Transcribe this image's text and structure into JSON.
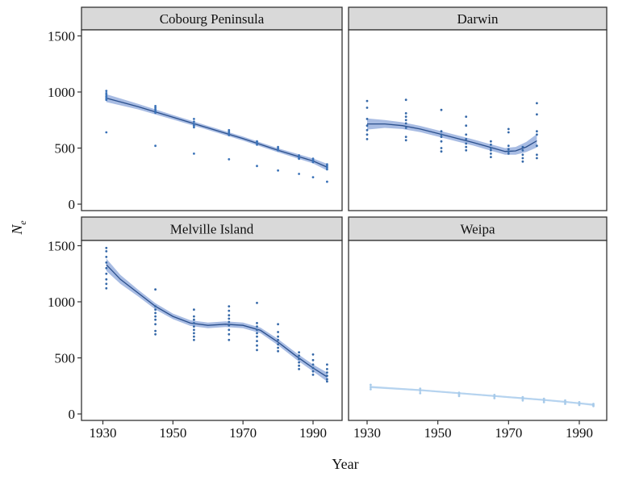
{
  "chart_data": {
    "type": "scatter",
    "facet_layout": "2x2 grid with shared axes",
    "xlabel": "Year",
    "ylabel": "N",
    "ylabel_subscript": "e",
    "xlim": [
      1925,
      1996
    ],
    "ylim": [
      -60,
      1560
    ],
    "x_ticks": [
      1930,
      1950,
      1970,
      1990
    ],
    "x_tick_labels": [
      "1930",
      "1950",
      "1970",
      "1990"
    ],
    "y_ticks": [
      0,
      500,
      1000,
      1500
    ],
    "y_tick_labels": [
      "0",
      "500",
      "1000",
      "1500"
    ],
    "grid": false,
    "colors": {
      "point": "#3568a8",
      "band": "#8ba6d9",
      "band_light": "#bcd4ee",
      "line_light": "#b5d3ef",
      "strip_bg": "#d9d9d9",
      "panel_border": "#333333"
    },
    "panels": [
      {
        "title": "Cobourg Peninsula",
        "color": "#3a72b8",
        "points": [
          [
            1931,
            1010
          ],
          [
            1931,
            990
          ],
          [
            1931,
            975
          ],
          [
            1931,
            960
          ],
          [
            1931,
            945
          ],
          [
            1931,
            930
          ],
          [
            1931,
            640
          ],
          [
            1945,
            875
          ],
          [
            1945,
            860
          ],
          [
            1945,
            845
          ],
          [
            1945,
            830
          ],
          [
            1945,
            815
          ],
          [
            1945,
            520
          ],
          [
            1956,
            760
          ],
          [
            1956,
            735
          ],
          [
            1956,
            715
          ],
          [
            1956,
            700
          ],
          [
            1956,
            685
          ],
          [
            1956,
            450
          ],
          [
            1966,
            660
          ],
          [
            1966,
            645
          ],
          [
            1966,
            630
          ],
          [
            1966,
            615
          ],
          [
            1966,
            400
          ],
          [
            1974,
            560
          ],
          [
            1974,
            545
          ],
          [
            1974,
            530
          ],
          [
            1974,
            340
          ],
          [
            1980,
            510
          ],
          [
            1980,
            495
          ],
          [
            1980,
            480
          ],
          [
            1980,
            300
          ],
          [
            1986,
            435
          ],
          [
            1986,
            420
          ],
          [
            1986,
            405
          ],
          [
            1986,
            270
          ],
          [
            1990,
            405
          ],
          [
            1990,
            390
          ],
          [
            1990,
            375
          ],
          [
            1990,
            240
          ],
          [
            1994,
            355
          ],
          [
            1994,
            340
          ],
          [
            1994,
            325
          ],
          [
            1994,
            310
          ],
          [
            1994,
            200
          ]
        ],
        "fit": [
          [
            1931,
            945
          ],
          [
            1940,
            870
          ],
          [
            1950,
            775
          ],
          [
            1960,
            680
          ],
          [
            1970,
            585
          ],
          [
            1980,
            480
          ],
          [
            1990,
            385
          ],
          [
            1994,
            330
          ]
        ],
        "band_halfwidth": [
          35,
          25,
          20,
          18,
          18,
          18,
          22,
          30
        ]
      },
      {
        "title": "Darwin",
        "color": "#3568a8",
        "points": [
          [
            1930,
            920
          ],
          [
            1930,
            860
          ],
          [
            1930,
            760
          ],
          [
            1930,
            700
          ],
          [
            1930,
            660
          ],
          [
            1930,
            620
          ],
          [
            1930,
            580
          ],
          [
            1941,
            930
          ],
          [
            1941,
            810
          ],
          [
            1941,
            780
          ],
          [
            1941,
            750
          ],
          [
            1941,
            720
          ],
          [
            1941,
            680
          ],
          [
            1941,
            600
          ],
          [
            1941,
            570
          ],
          [
            1951,
            840
          ],
          [
            1951,
            650
          ],
          [
            1951,
            620
          ],
          [
            1951,
            600
          ],
          [
            1951,
            560
          ],
          [
            1951,
            500
          ],
          [
            1951,
            470
          ],
          [
            1958,
            780
          ],
          [
            1958,
            700
          ],
          [
            1958,
            620
          ],
          [
            1958,
            580
          ],
          [
            1958,
            540
          ],
          [
            1958,
            510
          ],
          [
            1958,
            480
          ],
          [
            1965,
            560
          ],
          [
            1965,
            530
          ],
          [
            1965,
            500
          ],
          [
            1965,
            480
          ],
          [
            1965,
            450
          ],
          [
            1965,
            420
          ],
          [
            1970,
            670
          ],
          [
            1970,
            640
          ],
          [
            1970,
            520
          ],
          [
            1970,
            490
          ],
          [
            1970,
            470
          ],
          [
            1970,
            450
          ],
          [
            1974,
            510
          ],
          [
            1974,
            480
          ],
          [
            1974,
            440
          ],
          [
            1974,
            410
          ],
          [
            1974,
            380
          ],
          [
            1978,
            900
          ],
          [
            1978,
            800
          ],
          [
            1978,
            650
          ],
          [
            1978,
            620
          ],
          [
            1978,
            520
          ],
          [
            1978,
            440
          ],
          [
            1978,
            410
          ]
        ],
        "fit": [
          [
            1930,
            715
          ],
          [
            1935,
            715
          ],
          [
            1940,
            700
          ],
          [
            1945,
            670
          ],
          [
            1950,
            630
          ],
          [
            1955,
            590
          ],
          [
            1960,
            550
          ],
          [
            1965,
            505
          ],
          [
            1969,
            470
          ],
          [
            1972,
            475
          ],
          [
            1975,
            510
          ],
          [
            1978,
            565
          ]
        ],
        "band_halfwidth": [
          50,
          35,
          30,
          28,
          28,
          28,
          28,
          28,
          30,
          35,
          45,
          60
        ]
      },
      {
        "title": "Melville Island",
        "color": "#3568a8",
        "points": [
          [
            1931,
            1480
          ],
          [
            1931,
            1450
          ],
          [
            1931,
            1400
          ],
          [
            1931,
            1350
          ],
          [
            1931,
            1300
          ],
          [
            1931,
            1250
          ],
          [
            1931,
            1200
          ],
          [
            1931,
            1160
          ],
          [
            1931,
            1120
          ],
          [
            1945,
            1110
          ],
          [
            1945,
            960
          ],
          [
            1945,
            930
          ],
          [
            1945,
            900
          ],
          [
            1945,
            870
          ],
          [
            1945,
            840
          ],
          [
            1945,
            800
          ],
          [
            1945,
            740
          ],
          [
            1945,
            710
          ],
          [
            1956,
            930
          ],
          [
            1956,
            870
          ],
          [
            1956,
            840
          ],
          [
            1956,
            810
          ],
          [
            1956,
            780
          ],
          [
            1956,
            750
          ],
          [
            1956,
            720
          ],
          [
            1956,
            690
          ],
          [
            1956,
            660
          ],
          [
            1966,
            960
          ],
          [
            1966,
            920
          ],
          [
            1966,
            880
          ],
          [
            1966,
            850
          ],
          [
            1966,
            820
          ],
          [
            1966,
            790
          ],
          [
            1966,
            750
          ],
          [
            1966,
            710
          ],
          [
            1966,
            660
          ],
          [
            1974,
            990
          ],
          [
            1974,
            810
          ],
          [
            1974,
            780
          ],
          [
            1974,
            750
          ],
          [
            1974,
            720
          ],
          [
            1974,
            690
          ],
          [
            1974,
            650
          ],
          [
            1974,
            610
          ],
          [
            1974,
            570
          ],
          [
            1980,
            800
          ],
          [
            1980,
            730
          ],
          [
            1980,
            690
          ],
          [
            1980,
            660
          ],
          [
            1980,
            620
          ],
          [
            1980,
            590
          ],
          [
            1980,
            560
          ],
          [
            1986,
            550
          ],
          [
            1986,
            520
          ],
          [
            1986,
            490
          ],
          [
            1986,
            460
          ],
          [
            1986,
            430
          ],
          [
            1986,
            400
          ],
          [
            1990,
            530
          ],
          [
            1990,
            480
          ],
          [
            1990,
            440
          ],
          [
            1990,
            410
          ],
          [
            1990,
            380
          ],
          [
            1990,
            350
          ],
          [
            1994,
            440
          ],
          [
            1994,
            400
          ],
          [
            1994,
            370
          ],
          [
            1994,
            340
          ],
          [
            1994,
            310
          ],
          [
            1994,
            290
          ]
        ],
        "fit": [
          [
            1931,
            1330
          ],
          [
            1935,
            1200
          ],
          [
            1940,
            1080
          ],
          [
            1945,
            960
          ],
          [
            1950,
            870
          ],
          [
            1955,
            810
          ],
          [
            1960,
            790
          ],
          [
            1965,
            800
          ],
          [
            1970,
            790
          ],
          [
            1975,
            745
          ],
          [
            1980,
            640
          ],
          [
            1985,
            520
          ],
          [
            1990,
            410
          ],
          [
            1994,
            330
          ]
        ],
        "band_halfwidth": [
          55,
          40,
          30,
          28,
          25,
          25,
          25,
          25,
          25,
          25,
          28,
          30,
          30,
          40
        ]
      },
      {
        "title": "Weipa",
        "color": "#a8cbea",
        "points": [
          [
            1931,
            260
          ],
          [
            1931,
            240
          ],
          [
            1931,
            220
          ],
          [
            1945,
            225
          ],
          [
            1945,
            205
          ],
          [
            1945,
            185
          ],
          [
            1956,
            190
          ],
          [
            1956,
            175
          ],
          [
            1956,
            160
          ],
          [
            1966,
            170
          ],
          [
            1966,
            155
          ],
          [
            1966,
            140
          ],
          [
            1974,
            150
          ],
          [
            1974,
            135
          ],
          [
            1974,
            120
          ],
          [
            1980,
            135
          ],
          [
            1980,
            120
          ],
          [
            1980,
            105
          ],
          [
            1986,
            120
          ],
          [
            1986,
            105
          ],
          [
            1986,
            90
          ],
          [
            1990,
            105
          ],
          [
            1990,
            90
          ],
          [
            1990,
            80
          ],
          [
            1994,
            90
          ],
          [
            1994,
            80
          ],
          [
            1994,
            70
          ]
        ],
        "fit": [
          [
            1931,
            240
          ],
          [
            1945,
            212
          ],
          [
            1956,
            185
          ],
          [
            1966,
            160
          ],
          [
            1974,
            140
          ],
          [
            1980,
            125
          ],
          [
            1986,
            108
          ],
          [
            1990,
            95
          ],
          [
            1994,
            82
          ]
        ],
        "band_halfwidth": [
          10,
          8,
          8,
          8,
          8,
          8,
          8,
          8,
          10
        ]
      }
    ]
  }
}
